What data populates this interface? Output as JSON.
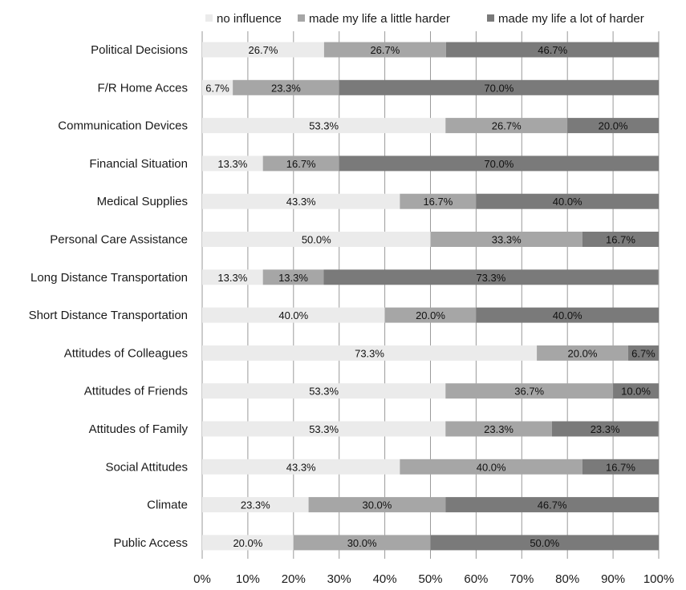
{
  "chart_data": {
    "type": "bar",
    "orientation": "horizontal",
    "stacked": true,
    "title": "",
    "xlabel": "",
    "ylabel": "",
    "xlim": [
      0,
      100
    ],
    "x_ticks": [
      "0%",
      "10%",
      "20%",
      "30%",
      "40%",
      "50%",
      "60%",
      "70%",
      "80%",
      "90%",
      "100%"
    ],
    "grid": true,
    "legend_position": "top",
    "categories": [
      "Political Decisions",
      "F/R Home Acces",
      "Communication Devices",
      "Financial Situation",
      "Medical Supplies",
      "Personal Care Assistance",
      "Long Distance Transportation",
      "Short Distance Transportation",
      "Attitudes of Colleagues",
      "Attitudes of Friends",
      "Attitudes of Family",
      "Social Attitudes",
      "Climate",
      "Public Access"
    ],
    "series": [
      {
        "name": "no influence",
        "color": "#ebebeb",
        "values": [
          26.7,
          6.7,
          53.3,
          13.3,
          43.3,
          50.0,
          13.3,
          40.0,
          73.3,
          53.3,
          53.3,
          43.3,
          23.3,
          20.0
        ],
        "labels": [
          "26.7%",
          "6.7%",
          "53.3%",
          "13.3%",
          "43.3%",
          "50.0%",
          "13.3%",
          "40.0%",
          "73.3%",
          "53.3%",
          "53.3%",
          "43.3%",
          "23.3%",
          "20.0%"
        ]
      },
      {
        "name": "made my life  a little harder",
        "color": "#a6a6a6",
        "values": [
          26.7,
          23.3,
          26.7,
          16.7,
          16.7,
          33.3,
          13.3,
          20.0,
          20.0,
          36.7,
          23.3,
          40.0,
          30.0,
          30.0
        ],
        "labels": [
          "26.7%",
          "23.3%",
          "26.7%",
          "16.7%",
          "16.7%",
          "33.3%",
          "13.3%",
          "20.0%",
          "20.0%",
          "36.7%",
          "23.3%",
          "40.0%",
          "30.0%",
          "30.0%"
        ]
      },
      {
        "name": "made my life a lot of harder",
        "color": "#7a7a7a",
        "values": [
          46.7,
          70.0,
          20.0,
          70.0,
          40.0,
          16.7,
          73.3,
          40.0,
          6.7,
          10.0,
          23.3,
          16.7,
          46.7,
          50.0
        ],
        "labels": [
          "46.7%",
          "70.0%",
          "20.0%",
          "70.0%",
          "40.0%",
          "16.7%",
          "73.3%",
          "40.0%",
          "6.7%",
          "10.0%",
          "23.3%",
          "16.7%",
          "46.7%",
          "50.0%"
        ]
      }
    ]
  }
}
